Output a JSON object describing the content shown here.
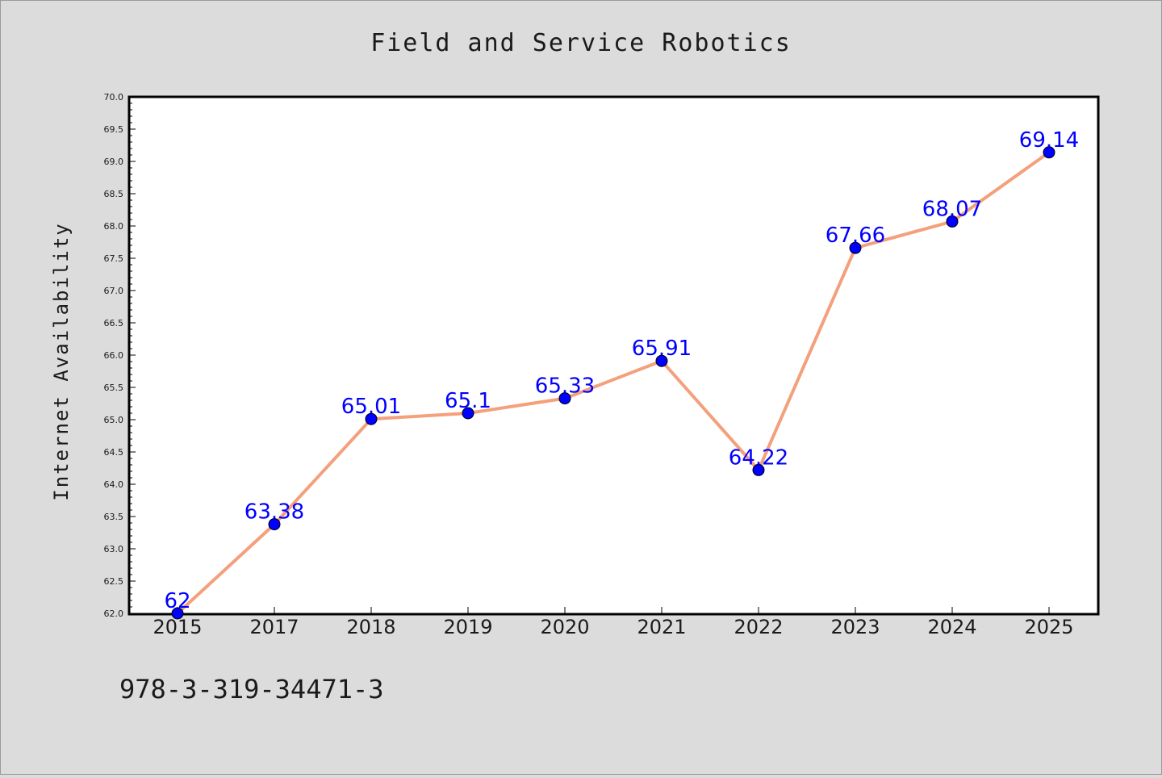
{
  "chart_data": {
    "type": "line",
    "title": "Field and Service Robotics",
    "xlabel": "",
    "ylabel": "Internet Availability",
    "categories": [
      "2015",
      "2017",
      "2018",
      "2019",
      "2020",
      "2021",
      "2022",
      "2023",
      "2024",
      "2025"
    ],
    "series": [
      {
        "values": [
          62,
          63.38,
          65.01,
          65.1,
          65.33,
          65.91,
          64.22,
          67.66,
          68.07,
          69.14
        ],
        "data_labels": [
          "62",
          "63.38",
          "65.01",
          "65.1",
          "65.33",
          "65.91",
          "64.22",
          "67.66",
          "68.07",
          "69.14"
        ],
        "line_color": "#f4a07c",
        "marker_color": "#0000ff"
      }
    ],
    "ylim": [
      62.0,
      70.0
    ],
    "yticks": [
      "62.0",
      "62.5",
      "63.0",
      "63.5",
      "64.0",
      "64.5",
      "65.0",
      "65.5",
      "66.0",
      "66.5",
      "67.0",
      "67.5",
      "68.0",
      "68.5",
      "69.0",
      "69.5",
      "70.0"
    ],
    "grid": false,
    "legend": "none"
  },
  "footer_text": "978-3-319-34471-3",
  "colors": {
    "background": "#dcdcdc",
    "plot_area": "#ffffff",
    "label_color": "#0000ff",
    "text": "#1a1a1a"
  }
}
